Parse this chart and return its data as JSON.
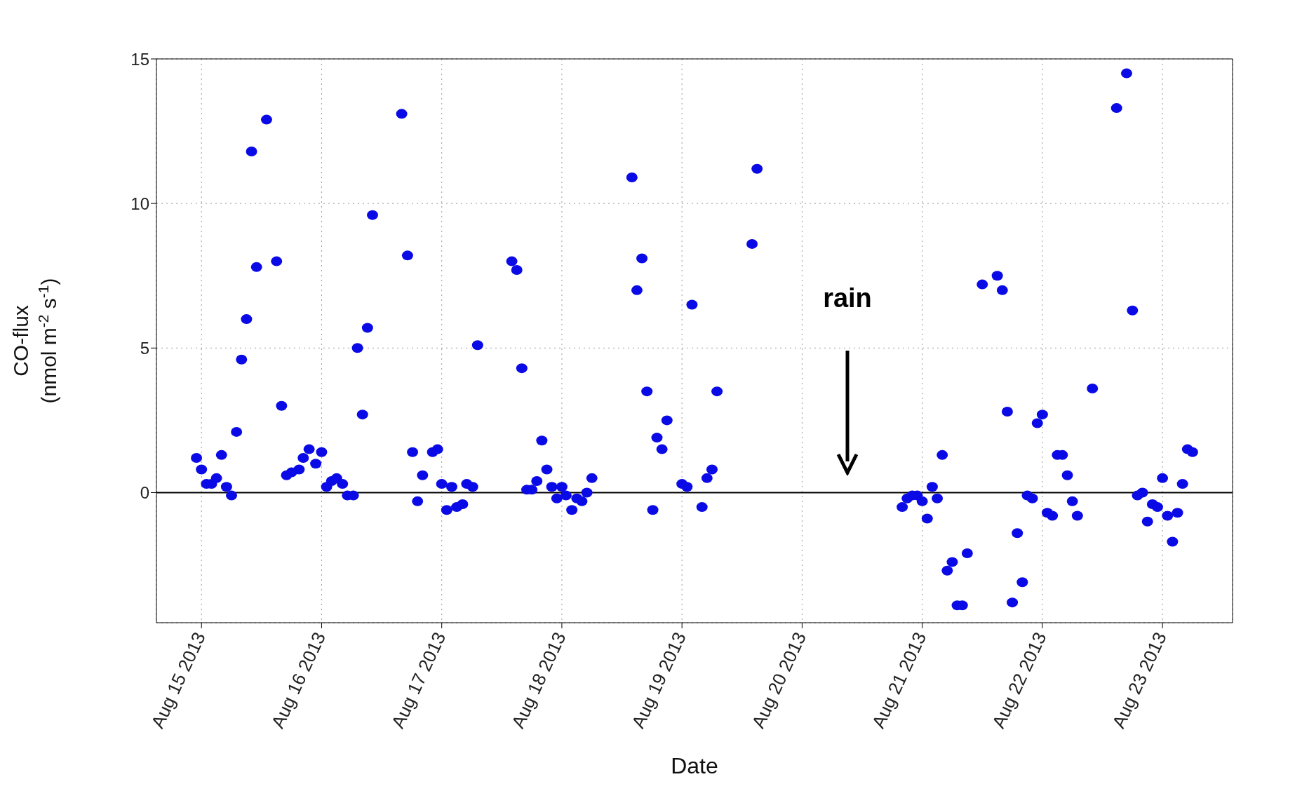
{
  "chart_data": {
    "type": "scatter",
    "xlabel": "Date",
    "ylabel": "CO-flux\n(nmol m$^{-2}$ s$^{-1}$)",
    "xlim": [
      "2013-08-14T15:00",
      "2013-08-23T14:00"
    ],
    "xticks": [
      {
        "value": "2013-08-15",
        "label": "Aug 15 2013"
      },
      {
        "value": "2013-08-16",
        "label": "Aug 16 2013"
      },
      {
        "value": "2013-08-17",
        "label": "Aug 17 2013"
      },
      {
        "value": "2013-08-18",
        "label": "Aug 18 2013"
      },
      {
        "value": "2013-08-19",
        "label": "Aug 19 2013"
      },
      {
        "value": "2013-08-20",
        "label": "Aug 20 2013"
      },
      {
        "value": "2013-08-21",
        "label": "Aug 21 2013"
      },
      {
        "value": "2013-08-22",
        "label": "Aug 22 2013"
      },
      {
        "value": "2013-08-23",
        "label": "Aug 23 2013"
      }
    ],
    "ylim": [
      -4.5,
      15
    ],
    "yticks": [
      0,
      5,
      10,
      15
    ],
    "grid": true,
    "marker": "circle",
    "ref_lines": [
      {
        "axis": "y",
        "value": 0,
        "color": "#000000"
      }
    ],
    "annotations": [
      "rain"
    ],
    "series": [
      {
        "color": "#0a0ae6",
        "x": [
          "2013-08-14T23:00",
          "2013-08-15T00:00",
          "2013-08-15T01:00",
          "2013-08-15T02:00",
          "2013-08-15T03:00",
          "2013-08-15T04:00",
          "2013-08-15T05:00",
          "2013-08-15T06:00",
          "2013-08-15T07:00",
          "2013-08-15T08:00",
          "2013-08-15T09:00",
          "2013-08-15T10:00",
          "2013-08-15T11:00",
          "2013-08-15T13:00",
          "2013-08-15T15:00",
          "2013-08-15T16:00",
          "2013-08-15T17:00",
          "2013-08-15T18:00",
          "2013-08-15T19:30",
          "2013-08-15T20:20",
          "2013-08-15T21:30",
          "2013-08-15T22:50",
          "2013-08-16T00:00",
          "2013-08-16T01:00",
          "2013-08-16T02:00",
          "2013-08-16T03:00",
          "2013-08-16T04:10",
          "2013-08-16T05:10",
          "2013-08-16T06:20",
          "2013-08-16T07:10",
          "2013-08-16T08:10",
          "2013-08-16T09:10",
          "2013-08-16T10:10",
          "2013-08-16T16:00",
          "2013-08-16T17:10",
          "2013-08-16T18:10",
          "2013-08-16T19:10",
          "2013-08-16T20:10",
          "2013-08-16T22:10",
          "2013-08-16T23:10",
          "2013-08-17T00:00",
          "2013-08-17T01:00",
          "2013-08-17T02:00",
          "2013-08-17T03:00",
          "2013-08-17T04:10",
          "2013-08-17T05:00",
          "2013-08-17T06:10",
          "2013-08-17T07:10",
          "2013-08-17T14:00",
          "2013-08-17T15:00",
          "2013-08-17T16:00",
          "2013-08-17T17:00",
          "2013-08-17T18:00",
          "2013-08-17T19:00",
          "2013-08-17T20:00",
          "2013-08-17T21:00",
          "2013-08-17T22:00",
          "2013-08-17T23:00",
          "2013-08-18T00:00",
          "2013-08-18T00:50",
          "2013-08-18T02:00",
          "2013-08-18T03:00",
          "2013-08-18T04:00",
          "2013-08-18T05:00",
          "2013-08-18T06:00",
          "2013-08-18T14:00",
          "2013-08-18T15:00",
          "2013-08-18T16:00",
          "2013-08-18T17:00",
          "2013-08-18T18:10",
          "2013-08-18T19:00",
          "2013-08-18T20:00",
          "2013-08-18T21:00",
          "2013-08-19T00:00",
          "2013-08-19T01:00",
          "2013-08-19T02:00",
          "2013-08-19T04:00",
          "2013-08-19T05:00",
          "2013-08-19T06:00",
          "2013-08-19T07:00",
          "2013-08-19T14:00",
          "2013-08-19T15:00",
          "2013-08-20T20:00",
          "2013-08-20T21:00",
          "2013-08-20T22:00",
          "2013-08-20T23:00",
          "2013-08-21T00:00",
          "2013-08-21T01:00",
          "2013-08-21T02:00",
          "2013-08-21T03:00",
          "2013-08-21T04:00",
          "2013-08-21T05:00",
          "2013-08-21T06:00",
          "2013-08-21T07:00",
          "2013-08-21T08:00",
          "2013-08-21T09:00",
          "2013-08-21T12:00",
          "2013-08-21T15:00",
          "2013-08-21T16:00",
          "2013-08-21T17:00",
          "2013-08-21T18:00",
          "2013-08-21T19:00",
          "2013-08-21T20:00",
          "2013-08-21T21:00",
          "2013-08-21T22:00",
          "2013-08-21T23:00",
          "2013-08-22T00:00",
          "2013-08-22T01:00",
          "2013-08-22T02:00",
          "2013-08-22T03:00",
          "2013-08-22T04:00",
          "2013-08-22T05:00",
          "2013-08-22T06:00",
          "2013-08-22T07:00",
          "2013-08-22T10:00",
          "2013-08-22T14:50",
          "2013-08-22T16:50",
          "2013-08-22T18:00",
          "2013-08-22T19:00",
          "2013-08-22T20:00",
          "2013-08-22T21:00",
          "2013-08-22T22:00",
          "2013-08-22T23:00",
          "2013-08-23T00:00",
          "2013-08-23T01:00",
          "2013-08-23T02:00",
          "2013-08-23T03:00",
          "2013-08-23T04:00",
          "2013-08-23T05:00",
          "2013-08-23T06:00"
        ],
        "values": [
          1.2,
          0.8,
          0.3,
          0.3,
          0.5,
          1.3,
          0.2,
          -0.1,
          2.1,
          4.6,
          6.0,
          11.8,
          7.8,
          12.9,
          8.0,
          3.0,
          0.6,
          0.7,
          0.8,
          1.2,
          1.5,
          1.0,
          1.4,
          0.2,
          0.4,
          0.5,
          0.3,
          -0.1,
          -0.1,
          5.0,
          2.7,
          5.7,
          9.6,
          13.1,
          8.2,
          1.4,
          -0.3,
          0.6,
          1.4,
          1.5,
          0.3,
          -0.6,
          0.2,
          -0.5,
          -0.4,
          0.3,
          0.2,
          5.1,
          8.0,
          7.7,
          4.3,
          0.1,
          0.1,
          0.4,
          1.8,
          0.8,
          0.2,
          -0.2,
          0.2,
          -0.1,
          -0.6,
          -0.2,
          -0.3,
          0.0,
          0.5,
          10.9,
          7.0,
          8.1,
          3.5,
          -0.6,
          1.9,
          1.5,
          2.5,
          0.3,
          0.2,
          6.5,
          -0.5,
          0.5,
          0.8,
          3.5,
          8.6,
          11.2,
          -0.5,
          -0.2,
          -0.1,
          -0.1,
          -0.3,
          -0.9,
          0.2,
          -0.2,
          1.3,
          -2.7,
          -2.4,
          -3.9,
          -3.9,
          -2.1,
          7.2,
          7.5,
          7.0,
          2.8,
          -3.8,
          -1.4,
          -3.1,
          -0.1,
          -0.2,
          2.4,
          2.7,
          -0.7,
          -0.8,
          1.3,
          1.3,
          0.6,
          -0.3,
          -0.8,
          3.6,
          13.3,
          14.5,
          6.3,
          -0.1,
          0.0,
          -1.0,
          -0.4,
          -0.5,
          0.5,
          -0.8,
          -1.7,
          -0.7,
          0.3,
          1.5,
          1.4
        ]
      }
    ]
  }
}
